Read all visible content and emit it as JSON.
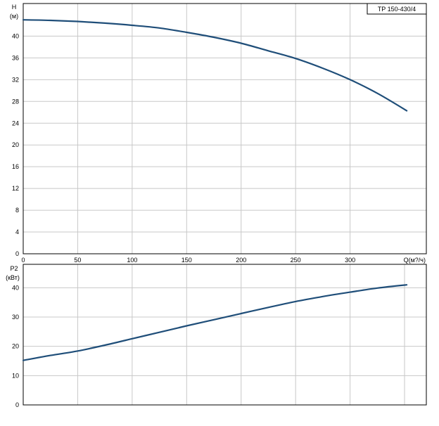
{
  "model_label": "TP 150-430/4",
  "colors": {
    "curve": "#1f4e79",
    "grid": "#c8c8c8",
    "frame": "#000000"
  },
  "chart_data": [
    {
      "type": "line",
      "ylabel": "H",
      "yunit": "(м)",
      "xlabel": "Q(м?/ч)",
      "xlim": [
        0,
        370
      ],
      "ylim": [
        0,
        46
      ],
      "x_ticks": [
        0,
        50,
        100,
        150,
        200,
        250,
        300
      ],
      "x_tick_labels": [
        "0",
        "50",
        "100",
        "150",
        "200",
        "250",
        "300"
      ],
      "y_ticks": [
        0,
        4,
        8,
        12,
        16,
        20,
        24,
        28,
        32,
        36,
        40
      ],
      "y_tick_labels": [
        "0",
        "4",
        "8",
        "12",
        "16",
        "20",
        "24",
        "28",
        "32",
        "36",
        "40"
      ],
      "grid": true,
      "series": [
        {
          "x": [
            0,
            25,
            50,
            75,
            100,
            125,
            150,
            175,
            200,
            225,
            250,
            275,
            300,
            325,
            352
          ],
          "y": [
            43.0,
            42.9,
            42.7,
            42.4,
            42.0,
            41.5,
            40.7,
            39.8,
            38.7,
            37.3,
            35.9,
            34.1,
            32.0,
            29.5,
            26.3
          ]
        }
      ]
    },
    {
      "type": "line",
      "ylabel": "P2",
      "yunit": "(кВт)",
      "xlabel": "",
      "xlim": [
        0,
        370
      ],
      "ylim": [
        0,
        48
      ],
      "x_ticks": [
        0,
        50,
        100,
        150,
        200,
        250,
        300,
        350
      ],
      "y_ticks": [
        0,
        10,
        20,
        30,
        40
      ],
      "y_tick_labels": [
        "0",
        "10",
        "20",
        "30",
        "40"
      ],
      "grid": true,
      "series": [
        {
          "x": [
            0,
            25,
            50,
            75,
            100,
            125,
            150,
            175,
            200,
            225,
            250,
            275,
            300,
            325,
            352
          ],
          "y": [
            15.2,
            16.9,
            18.4,
            20.4,
            22.6,
            24.8,
            27.0,
            29.1,
            31.2,
            33.3,
            35.3,
            37.0,
            38.5,
            39.9,
            41.0
          ]
        }
      ]
    }
  ]
}
